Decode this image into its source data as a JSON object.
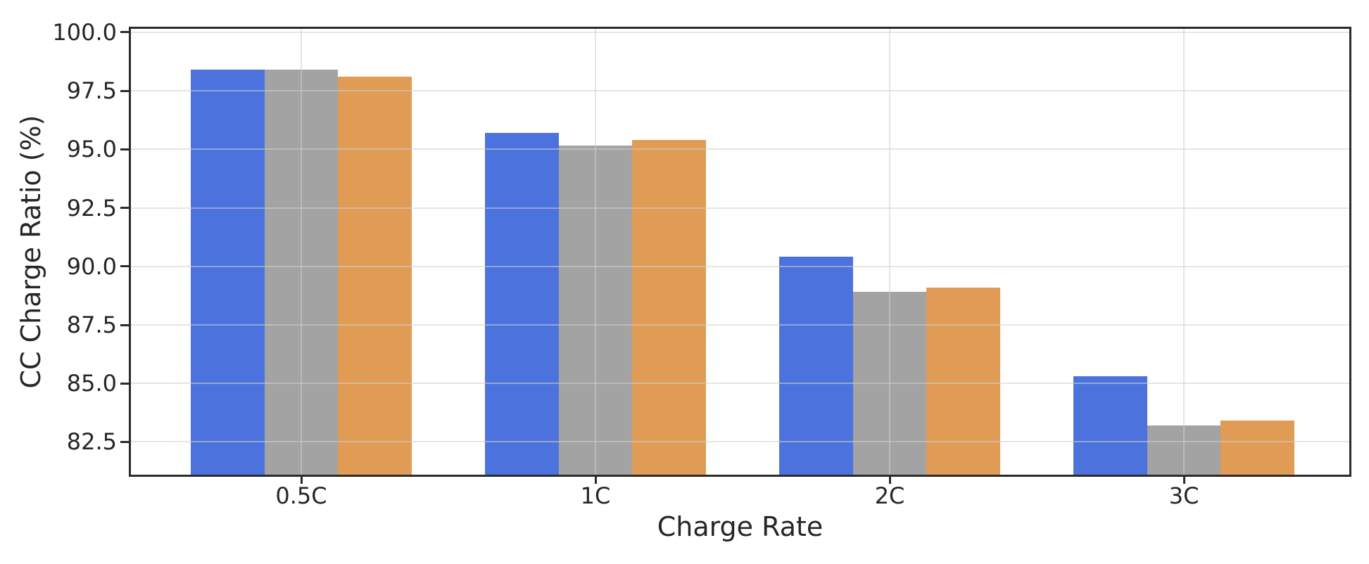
{
  "chart_data": {
    "type": "bar",
    "title": "",
    "xlabel": "Charge Rate",
    "ylabel": "CC Charge Ratio (%)",
    "categories": [
      "0.5C",
      "1C",
      "2C",
      "3C"
    ],
    "series": [
      {
        "name": "blue",
        "color": "#4C72DD",
        "values": [
          98.4,
          95.7,
          90.4,
          85.3
        ]
      },
      {
        "name": "gray",
        "color": "#A3A3A3",
        "values": [
          98.4,
          95.15,
          88.9,
          83.2
        ]
      },
      {
        "name": "orange",
        "color": "#E09C55",
        "values": [
          98.1,
          95.4,
          89.1,
          83.4
        ]
      }
    ],
    "bar_width": 0.25,
    "xlim": [
      -0.579,
      3.562
    ],
    "ylim": [
      81.1,
      100.15
    ],
    "yticks": [
      100.0,
      97.5,
      95.0,
      92.5,
      90.0,
      87.5,
      85.0,
      82.5
    ],
    "ytick_labels": [
      "100.0",
      "97.5",
      "95.0",
      "92.5",
      "90.0",
      "87.5",
      "85.0",
      "82.5"
    ],
    "grid": true,
    "grid_axis": "both",
    "grid_above_bars": true,
    "legend": "none",
    "background": "#FFFFFF"
  },
  "styles": {
    "grid_color_over_white": "#E9E9E9",
    "grid_rgba": "rgba(208,208,208,0.55)",
    "spine_color": "#2B2B2B",
    "tick_color": "#2B2B2B",
    "text_color": "#262626"
  }
}
